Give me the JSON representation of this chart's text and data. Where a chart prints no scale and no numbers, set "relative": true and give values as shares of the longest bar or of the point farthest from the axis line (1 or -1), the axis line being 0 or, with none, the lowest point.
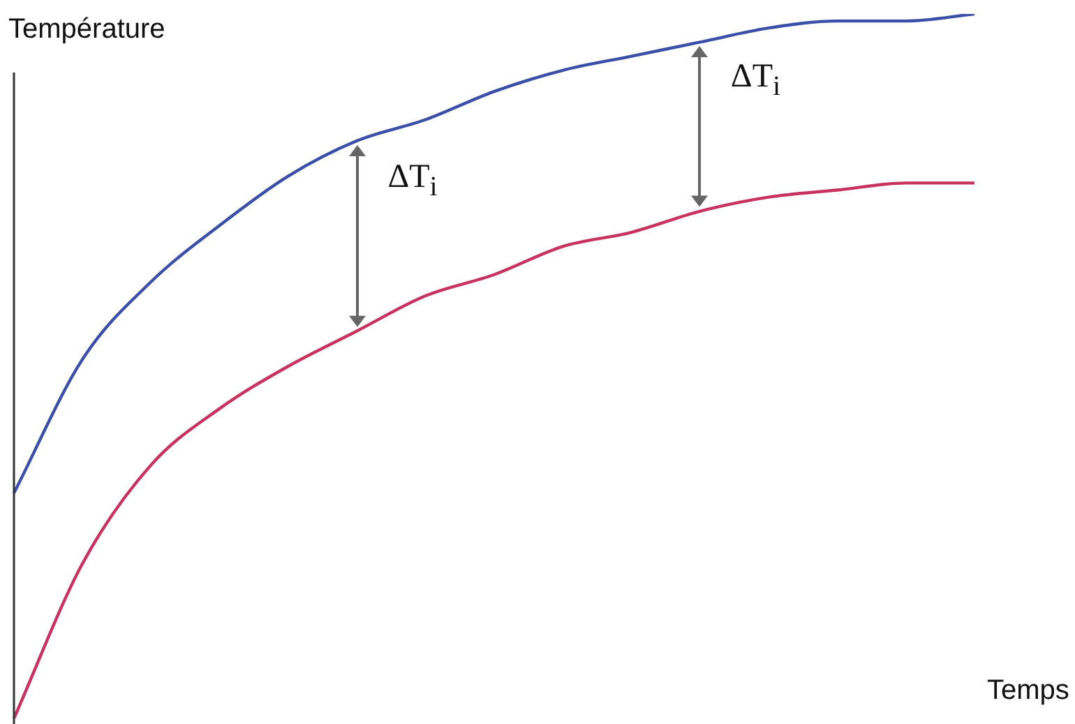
{
  "chart_data": {
    "type": "line",
    "relative": true,
    "xlabel": "Temps",
    "ylabel": "Température",
    "categories": [
      null,
      null,
      null,
      null,
      null,
      null,
      null,
      null,
      null,
      null,
      null,
      null,
      null,
      null,
      null
    ],
    "series": [
      {
        "color": "#3a4fa8",
        "values": [
          0.32,
          0.51,
          0.62,
          0.7,
          0.77,
          0.82,
          0.85,
          0.89,
          0.92,
          0.94,
          0.96,
          0.98,
          0.99,
          0.99,
          1
        ]
      },
      {
        "color": "#c8325f",
        "values": [
          0,
          0.22,
          0.36,
          0.44,
          0.5,
          0.55,
          0.6,
          0.63,
          0.67,
          0.69,
          0.72,
          0.74,
          0.75,
          0.76,
          0.76
        ]
      }
    ],
    "annotations": [
      "ΔT$_{i}$",
      "ΔT$_{i}$"
    ],
    "legend": false,
    "marker": "none",
    "line_style": "solid"
  }
}
